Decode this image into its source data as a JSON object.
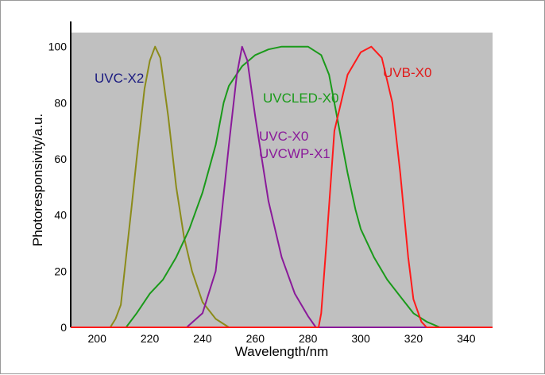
{
  "chart_data": {
    "type": "line",
    "title": "",
    "xlabel": "Wavelength/nm",
    "ylabel": "Photoresponsivity/a.u.",
    "xlim": [
      190,
      350
    ],
    "ylim": [
      0,
      105
    ],
    "xticks": [
      200,
      220,
      240,
      260,
      280,
      300,
      320,
      340
    ],
    "yticks": [
      0,
      20,
      40,
      60,
      80,
      100
    ],
    "grid": false,
    "background": "#c0c0c0",
    "series": [
      {
        "name": "UVC-X2",
        "color": "#8b8b1a",
        "label_color": "#1a1a80",
        "x": [
          190,
          205,
          207,
          209,
          211,
          213,
          215,
          218,
          220,
          222,
          224,
          227,
          230,
          233,
          236,
          240,
          245,
          250,
          350
        ],
        "y": [
          0,
          0,
          3,
          8,
          25,
          42,
          60,
          85,
          95,
          100,
          96,
          75,
          50,
          32,
          20,
          9,
          3,
          0,
          0
        ]
      },
      {
        "name": "UVCLED-X0",
        "color": "#1a9a1a",
        "label_color": "#1a9a1a",
        "x": [
          190,
          211,
          215,
          220,
          225,
          230,
          235,
          240,
          245,
          248,
          250,
          255,
          260,
          265,
          270,
          280,
          285,
          288,
          290,
          292,
          295,
          298,
          300,
          305,
          310,
          315,
          320,
          325,
          330,
          350
        ],
        "y": [
          0,
          0,
          5,
          12,
          17,
          25,
          35,
          48,
          65,
          80,
          86,
          93,
          97,
          99,
          100,
          100,
          97,
          90,
          80,
          70,
          55,
          42,
          35,
          25,
          17,
          11,
          5,
          2,
          0,
          0
        ]
      },
      {
        "name": "UVC-X0\nUVCWP-X1",
        "color": "#8a1a9a",
        "label_color": "#8a1a9a",
        "x": [
          190,
          234,
          240,
          245,
          250,
          253,
          255,
          257,
          260,
          265,
          270,
          275,
          280,
          283,
          350
        ],
        "y": [
          0,
          0,
          5,
          20,
          65,
          90,
          100,
          95,
          75,
          45,
          25,
          12,
          4,
          0,
          0
        ]
      },
      {
        "name": "UVB-X0",
        "color": "#ff1a1a",
        "label_color": "#e01a1a",
        "x": [
          190,
          284,
          285,
          287,
          290,
          295,
          300,
          304,
          308,
          312,
          315,
          318,
          320,
          323,
          325,
          350
        ],
        "y": [
          0,
          0,
          5,
          30,
          70,
          90,
          98,
          100,
          96,
          80,
          55,
          25,
          10,
          2,
          0,
          0
        ]
      }
    ]
  }
}
